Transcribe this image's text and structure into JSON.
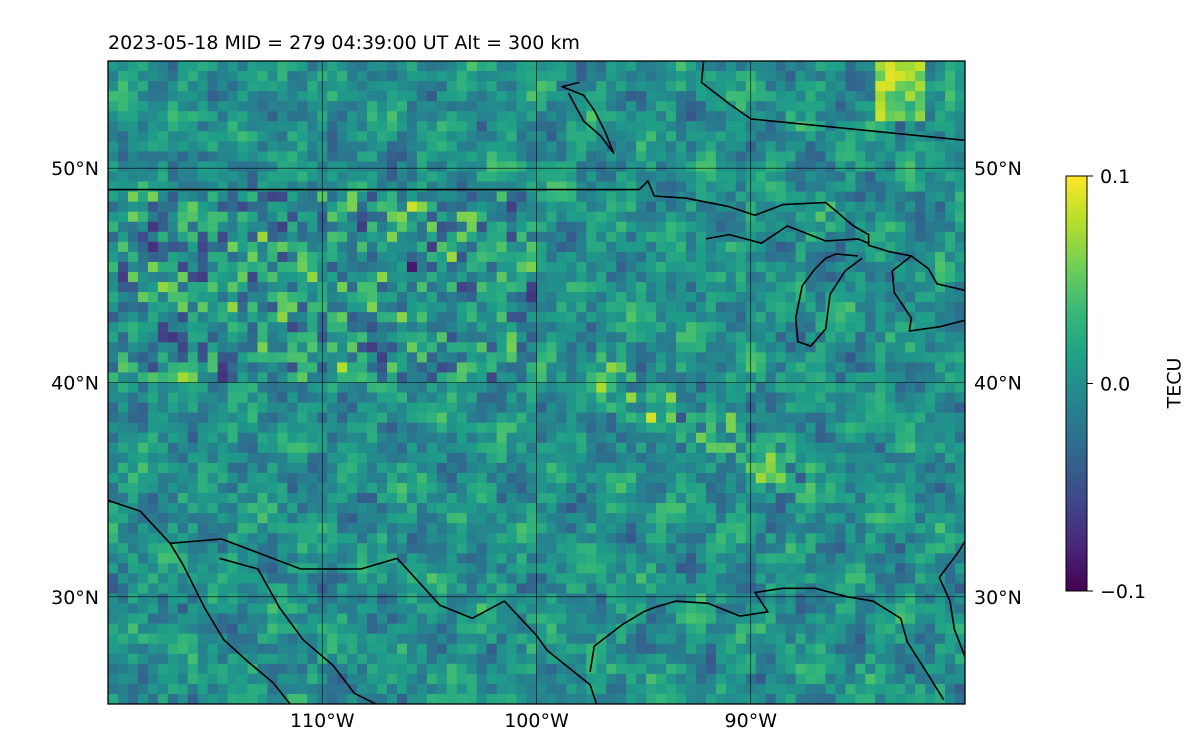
{
  "title": "2023-05-18  MID = 279    04:39:00  UT  Alt = 300 km",
  "map": {
    "lon_range": [
      -120,
      -80
    ],
    "lat_range": [
      25,
      55
    ],
    "lon_ticks": [
      {
        "value": -110,
        "label": "110°W"
      },
      {
        "value": -100,
        "label": "100°W"
      },
      {
        "value": -90,
        "label": "90°W"
      }
    ],
    "lat_ticks": [
      {
        "value": 50,
        "label": "50°N"
      },
      {
        "value": 40,
        "label": "40°N"
      },
      {
        "value": 30,
        "label": "30°N"
      }
    ],
    "gridlines": true,
    "grid_color": "#000000",
    "coastline_color": "#000000",
    "background_field": "noisy TEC perturbation, mostly near zero",
    "coastlines": [
      {
        "name": "us-canada-border-and-lake-superior",
        "points": [
          [
            -120,
            49
          ],
          [
            -95.2,
            49
          ],
          [
            -94.8,
            49.4
          ],
          [
            -94.5,
            48.7
          ],
          [
            -93,
            48.6
          ],
          [
            -91,
            48.2
          ],
          [
            -89.8,
            47.8
          ],
          [
            -88.5,
            48.3
          ],
          [
            -86.5,
            48.4
          ],
          [
            -85.2,
            47.3
          ],
          [
            -84.5,
            46.9
          ],
          [
            -84.5,
            46.4
          ],
          [
            -83.5,
            46.1
          ],
          [
            -82.5,
            45.9
          ],
          [
            -81.7,
            45.3
          ],
          [
            -81.3,
            44.6
          ],
          [
            -80,
            44.3
          ]
        ]
      },
      {
        "name": "lake-superior-south-shore",
        "points": [
          [
            -92.1,
            46.7
          ],
          [
            -91,
            46.9
          ],
          [
            -89.5,
            46.5
          ],
          [
            -88.3,
            47.3
          ],
          [
            -87.5,
            47.0
          ],
          [
            -86.5,
            46.6
          ],
          [
            -85,
            46.7
          ],
          [
            -84.5,
            46.5
          ]
        ]
      },
      {
        "name": "lake-michigan",
        "points": [
          [
            -84.8,
            45.8
          ],
          [
            -85.6,
            45.2
          ],
          [
            -86.3,
            44.1
          ],
          [
            -86.5,
            42.5
          ],
          [
            -87.2,
            41.7
          ],
          [
            -87.8,
            41.9
          ],
          [
            -87.9,
            43.0
          ],
          [
            -87.6,
            44.5
          ],
          [
            -87.0,
            45.3
          ],
          [
            -86.5,
            45.8
          ],
          [
            -86.0,
            46.0
          ],
          [
            -85.0,
            45.9
          ]
        ]
      },
      {
        "name": "lake-huron-and-erie",
        "points": [
          [
            -82.5,
            45.9
          ],
          [
            -83.4,
            45.2
          ],
          [
            -83.3,
            44.2
          ],
          [
            -82.5,
            43.0
          ],
          [
            -82.6,
            42.4
          ],
          [
            -81.2,
            42.6
          ],
          [
            -80,
            42.9
          ]
        ]
      },
      {
        "name": "hudson-bay-west-shore",
        "points": [
          [
            -92.2,
            55
          ],
          [
            -92.3,
            54
          ],
          [
            -91,
            53
          ],
          [
            -90,
            52.3
          ],
          [
            -80,
            51.3
          ]
        ]
      },
      {
        "name": "lake-winnipeg",
        "points": [
          [
            -98,
            54
          ],
          [
            -98.8,
            53.8
          ],
          [
            -97.8,
            53.4
          ],
          [
            -97.3,
            52.7
          ],
          [
            -96.8,
            51.7
          ],
          [
            -96.4,
            50.7
          ],
          [
            -97,
            51.5
          ],
          [
            -97.8,
            52.2
          ],
          [
            -98.5,
            53.5
          ]
        ]
      },
      {
        "name": "mexico-us-border",
        "points": [
          [
            -117.1,
            32.5
          ],
          [
            -114.7,
            32.7
          ],
          [
            -111,
            31.3
          ],
          [
            -108.2,
            31.3
          ],
          [
            -106.5,
            31.8
          ],
          [
            -104.5,
            29.6
          ],
          [
            -103,
            29
          ],
          [
            -101.5,
            29.8
          ],
          [
            -100,
            28.2
          ],
          [
            -99.5,
            27.5
          ],
          [
            -97.5,
            25.9
          ],
          [
            -97.2,
            25
          ]
        ]
      },
      {
        "name": "gulf-of-mexico-north-coast",
        "points": [
          [
            -97.5,
            26.5
          ],
          [
            -97.3,
            27.7
          ],
          [
            -96,
            28.7
          ],
          [
            -95,
            29.3
          ],
          [
            -94.5,
            29.5
          ],
          [
            -93.5,
            29.8
          ],
          [
            -92,
            29.7
          ],
          [
            -90.5,
            29.1
          ],
          [
            -89.2,
            29.3
          ],
          [
            -89.8,
            30.2
          ],
          [
            -88.5,
            30.4
          ],
          [
            -87,
            30.4
          ],
          [
            -85.5,
            30
          ],
          [
            -84.3,
            29.8
          ],
          [
            -83,
            29
          ],
          [
            -82.7,
            27.9
          ],
          [
            -81.8,
            26.5
          ],
          [
            -81,
            25.2
          ]
        ]
      },
      {
        "name": "florida-atlantic-coast",
        "points": [
          [
            -80,
            27.2
          ],
          [
            -80.5,
            28.5
          ],
          [
            -80.7,
            29.8
          ],
          [
            -81.2,
            30.9
          ],
          [
            -80.3,
            32.1
          ],
          [
            -80,
            32.6
          ]
        ]
      },
      {
        "name": "pacific-coast-and-gulf-of-california",
        "points": [
          [
            -120,
            34.5
          ],
          [
            -118.5,
            34.0
          ],
          [
            -117.1,
            32.5
          ],
          [
            -116.5,
            31.5
          ],
          [
            -115.5,
            29.5
          ],
          [
            -114.6,
            28
          ],
          [
            -113.5,
            27
          ],
          [
            -112.3,
            26
          ],
          [
            -111.5,
            25
          ]
        ]
      },
      {
        "name": "gulf-of-california-east",
        "points": [
          [
            -114.8,
            31.8
          ],
          [
            -113,
            31.3
          ],
          [
            -112,
            29.5
          ],
          [
            -110.9,
            28
          ],
          [
            -109.5,
            26.8
          ],
          [
            -108.5,
            25.5
          ],
          [
            -107.5,
            25
          ]
        ]
      }
    ]
  },
  "colorbar": {
    "label": "TECU",
    "min": -0.1,
    "max": 0.1,
    "ticks": [
      {
        "value": 0.1,
        "label": "0.1"
      },
      {
        "value": 0.0,
        "label": "0.0"
      },
      {
        "value": -0.1,
        "label": "−0.1"
      }
    ],
    "colormap": [
      "#440154",
      "#482878",
      "#3e4989",
      "#31688e",
      "#26828e",
      "#1f9e89",
      "#35b779",
      "#6ece58",
      "#b5de2b",
      "#fde725"
    ]
  }
}
